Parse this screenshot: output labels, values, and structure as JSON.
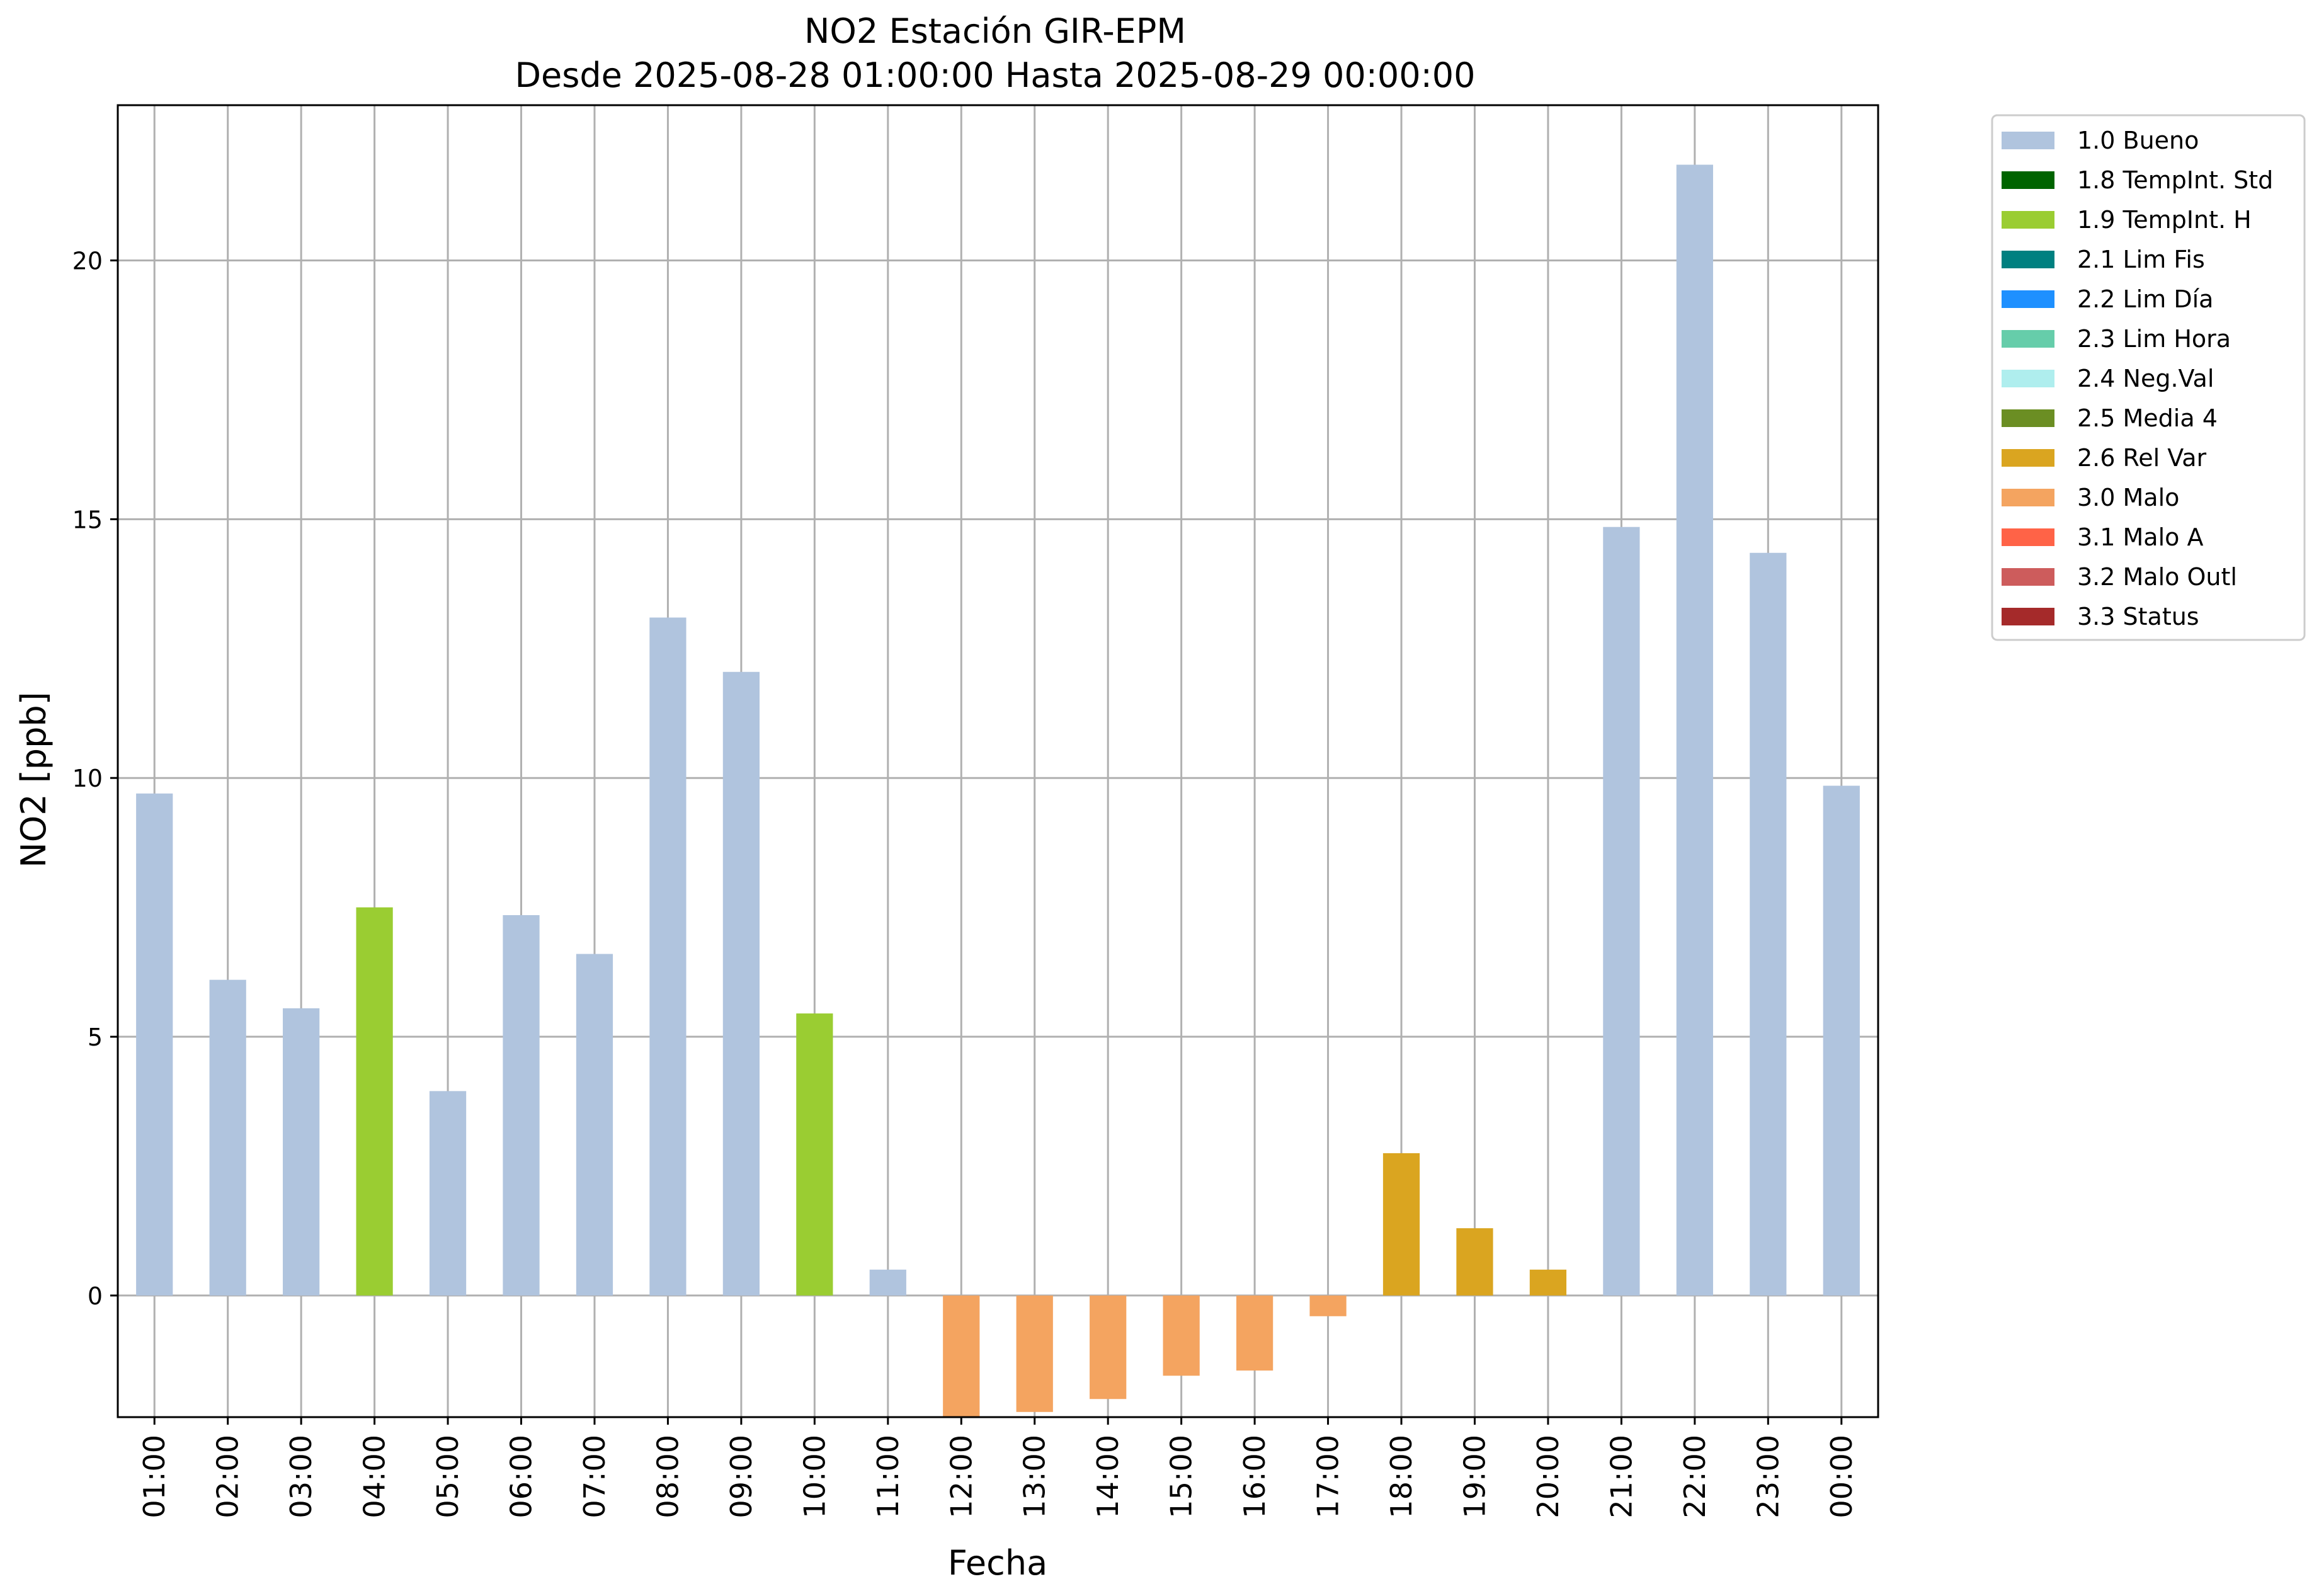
{
  "chart_data": {
    "type": "bar",
    "title": "NO2 Estación GIR-EPM",
    "subtitle": "Desde 2025-08-28 01:00:00 Hasta 2025-08-29 00:00:00",
    "xlabel": "Fecha",
    "ylabel": "NO2 [ppb]",
    "ylim": [
      -2.35,
      23.0
    ],
    "yticks": [
      0,
      5,
      10,
      15,
      20
    ],
    "grid": true,
    "legend_position": "outside-top-right",
    "categories": [
      "01:00",
      "02:00",
      "03:00",
      "04:00",
      "05:00",
      "06:00",
      "07:00",
      "08:00",
      "09:00",
      "10:00",
      "11:00",
      "12:00",
      "13:00",
      "14:00",
      "15:00",
      "16:00",
      "17:00",
      "18:00",
      "19:00",
      "20:00",
      "21:00",
      "22:00",
      "23:00",
      "00:00"
    ],
    "values": [
      9.7,
      6.1,
      5.55,
      7.5,
      3.95,
      7.35,
      6.6,
      13.1,
      12.05,
      5.45,
      0.5,
      -2.35,
      -2.25,
      -2.0,
      -1.55,
      -1.45,
      -0.4,
      2.75,
      1.3,
      0.5,
      14.85,
      21.85,
      14.35,
      9.85
    ],
    "flags": [
      "1.0 Bueno",
      "1.0 Bueno",
      "1.0 Bueno",
      "1.9 TempInt. H",
      "1.0 Bueno",
      "1.0 Bueno",
      "1.0 Bueno",
      "1.0 Bueno",
      "1.0 Bueno",
      "1.9 TempInt. H",
      "1.0 Bueno",
      "3.0 Malo",
      "3.0 Malo",
      "3.0 Malo",
      "3.0 Malo",
      "3.0 Malo",
      "3.0 Malo",
      "2.6 Rel Var",
      "2.6 Rel Var",
      "2.6 Rel Var",
      "1.0 Bueno",
      "1.0 Bueno",
      "1.0 Bueno",
      "1.0 Bueno"
    ],
    "legend": [
      {
        "label": "1.0 Bueno",
        "color": "#b0c4de"
      },
      {
        "label": "1.8 TempInt. Std",
        "color": "#006400"
      },
      {
        "label": "1.9 TempInt. H",
        "color": "#9acd32"
      },
      {
        "label": "2.1 Lim Fis",
        "color": "#008080"
      },
      {
        "label": "2.2 Lim Día",
        "color": "#1e90ff"
      },
      {
        "label": "2.3 Lim Hora",
        "color": "#66cdaa"
      },
      {
        "label": "2.4 Neg.Val",
        "color": "#afeeee"
      },
      {
        "label": "2.5 Media 4",
        "color": "#6b8e23"
      },
      {
        "label": "2.6 Rel Var",
        "color": "#daa520"
      },
      {
        "label": "3.0 Malo",
        "color": "#f4a460"
      },
      {
        "label": "3.1 Malo A",
        "color": "#ff6347"
      },
      {
        "label": "3.2 Malo Outl",
        "color": "#cd5c5c"
      },
      {
        "label": "3.3 Status",
        "color": "#a52a2a"
      }
    ]
  }
}
